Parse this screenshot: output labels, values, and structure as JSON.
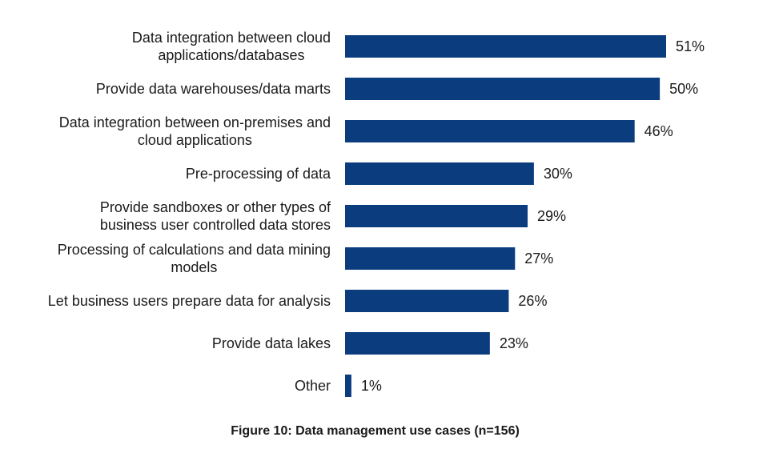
{
  "chart_data": {
    "type": "bar",
    "orientation": "horizontal",
    "categories": [
      [
        "Data integration between cloud",
        "applications/databases"
      ],
      [
        "Provide data warehouses/data marts"
      ],
      [
        "Data integration between on-premises and",
        "cloud applications"
      ],
      [
        "Pre-processing of data"
      ],
      [
        "Provide sandboxes or other types of",
        "business user controlled data stores"
      ],
      [
        "Processing of calculations and data mining",
        "models"
      ],
      [
        "Let business users prepare data for analysis"
      ],
      [
        "Provide data lakes"
      ],
      [
        "Other"
      ]
    ],
    "values": [
      51,
      50,
      46,
      30,
      29,
      27,
      26,
      23,
      1
    ],
    "value_labels": [
      "51%",
      "50%",
      "46%",
      "30%",
      "29%",
      "27%",
      "26%",
      "23%",
      "1%"
    ],
    "unit": "%",
    "title": "",
    "xlabel": "",
    "ylabel": "",
    "xlim": [
      0,
      51
    ],
    "grid": false,
    "legend": "none",
    "bar_color": "#0a3c7e"
  },
  "caption": "Figure 10: Data management use cases (n=156)"
}
